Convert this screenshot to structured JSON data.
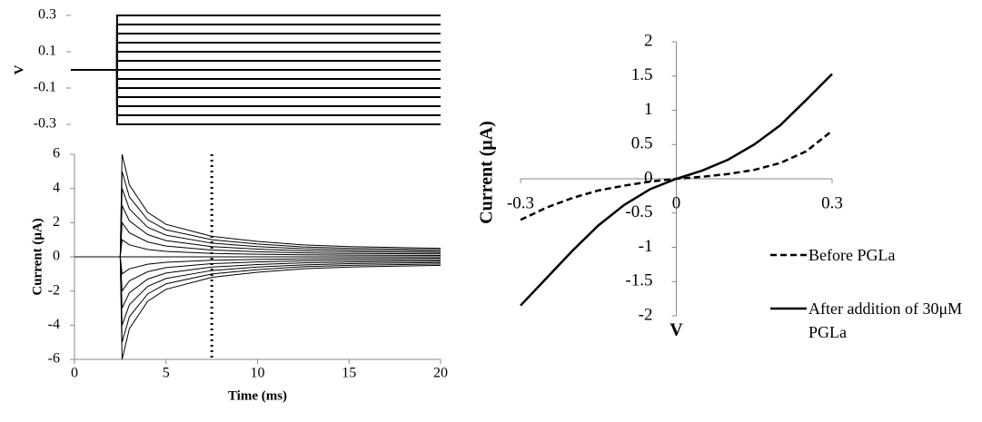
{
  "chart_data": [
    {
      "type": "line",
      "ylabel": "V",
      "x": [
        0,
        2.5,
        2.5,
        20
      ],
      "xlim": [
        0,
        20
      ],
      "ylim": [
        -0.3,
        0.3
      ],
      "yticks": [
        -0.3,
        -0.1,
        0.1,
        0.3
      ],
      "series": [
        {
          "color": "#000000",
          "values": [
            0,
            0,
            0.3,
            0.3
          ]
        },
        {
          "color": "#000000",
          "values": [
            0,
            0,
            0.25,
            0.25
          ]
        },
        {
          "color": "#000000",
          "values": [
            0,
            0,
            0.2,
            0.2
          ]
        },
        {
          "color": "#000000",
          "values": [
            0,
            0,
            0.15,
            0.15
          ]
        },
        {
          "color": "#000000",
          "values": [
            0,
            0,
            0.1,
            0.1
          ]
        },
        {
          "color": "#000000",
          "values": [
            0,
            0,
            0.05,
            0.05
          ]
        },
        {
          "color": "#000000",
          "values": [
            0,
            0,
            0,
            0
          ]
        },
        {
          "color": "#000000",
          "values": [
            0,
            0,
            -0.05,
            -0.05
          ]
        },
        {
          "color": "#000000",
          "values": [
            0,
            0,
            -0.1,
            -0.1
          ]
        },
        {
          "color": "#000000",
          "values": [
            0,
            0,
            -0.15,
            -0.15
          ]
        },
        {
          "color": "#000000",
          "values": [
            0,
            0,
            -0.2,
            -0.2
          ]
        },
        {
          "color": "#000000",
          "values": [
            0,
            0,
            -0.25,
            -0.25
          ]
        },
        {
          "color": "#000000",
          "values": [
            0,
            0,
            -0.3,
            -0.3
          ]
        }
      ]
    },
    {
      "type": "line",
      "xlabel": "Time (ms)",
      "ylabel": "Current (μA)",
      "x": [
        0,
        2.5,
        2.6,
        3,
        4,
        5,
        7.5,
        10,
        12.5,
        15,
        20
      ],
      "xlim": [
        0,
        20
      ],
      "xticks": [
        0,
        5,
        10,
        15,
        20
      ],
      "ylim": [
        -6,
        6
      ],
      "yticks": [
        -6,
        -4,
        -2,
        0,
        2,
        4,
        6
      ],
      "vline": 7.5,
      "series": [
        {
          "color": "#000000",
          "values": [
            0,
            0,
            6,
            4.2,
            2.6,
            1.9,
            1.2,
            0.9,
            0.7,
            0.6,
            0.5
          ]
        },
        {
          "color": "#000000",
          "values": [
            0,
            0,
            5,
            3.5,
            2.17,
            1.58,
            1,
            0.75,
            0.58,
            0.5,
            0.42
          ]
        },
        {
          "color": "#000000",
          "values": [
            0,
            0,
            4,
            2.8,
            1.73,
            1.27,
            0.8,
            0.6,
            0.47,
            0.4,
            0.33
          ]
        },
        {
          "color": "#000000",
          "values": [
            0,
            0,
            3,
            2.1,
            1.3,
            0.95,
            0.6,
            0.45,
            0.35,
            0.3,
            0.25
          ]
        },
        {
          "color": "#000000",
          "values": [
            0,
            0,
            2,
            1.4,
            0.87,
            0.63,
            0.4,
            0.3,
            0.23,
            0.2,
            0.17
          ]
        },
        {
          "color": "#000000",
          "values": [
            0,
            0,
            1,
            0.7,
            0.43,
            0.32,
            0.2,
            0.15,
            0.12,
            0.1,
            0.08
          ]
        },
        {
          "color": "#000000",
          "values": [
            0,
            0,
            0,
            0,
            0,
            0,
            0,
            0,
            0,
            0,
            0
          ]
        },
        {
          "color": "#000000",
          "values": [
            0,
            0,
            -1,
            -0.7,
            -0.43,
            -0.32,
            -0.2,
            -0.15,
            -0.12,
            -0.1,
            -0.08
          ]
        },
        {
          "color": "#000000",
          "values": [
            0,
            0,
            -2,
            -1.4,
            -0.87,
            -0.63,
            -0.4,
            -0.3,
            -0.23,
            -0.2,
            -0.17
          ]
        },
        {
          "color": "#000000",
          "values": [
            0,
            0,
            -3,
            -2.1,
            -1.3,
            -0.95,
            -0.6,
            -0.45,
            -0.35,
            -0.3,
            -0.25
          ]
        },
        {
          "color": "#000000",
          "values": [
            0,
            0,
            -4,
            -2.8,
            -1.73,
            -1.27,
            -0.8,
            -0.6,
            -0.47,
            -0.4,
            -0.33
          ]
        },
        {
          "color": "#000000",
          "values": [
            0,
            0,
            -5,
            -3.5,
            -2.17,
            -1.58,
            -1,
            -0.75,
            -0.58,
            -0.5,
            -0.42
          ]
        },
        {
          "color": "#000000",
          "values": [
            0,
            0,
            -6,
            -4.2,
            -2.6,
            -1.9,
            -1.2,
            -0.9,
            -0.7,
            -0.6,
            -0.5
          ]
        }
      ]
    },
    {
      "type": "line",
      "xlabel": "V",
      "ylabel": "Current (μA)",
      "axes_cross_at_zero": true,
      "legend": "right",
      "x": [
        -0.3,
        -0.25,
        -0.2,
        -0.15,
        -0.1,
        -0.05,
        0,
        0.05,
        0.1,
        0.15,
        0.2,
        0.25,
        0.3
      ],
      "xlim": [
        -0.3,
        0.3
      ],
      "xticks": [
        -0.3,
        0,
        0.3
      ],
      "ylim": [
        -2,
        2
      ],
      "yticks": [
        -2,
        -1.5,
        -1,
        -0.5,
        0,
        0.5,
        1,
        1.5,
        2
      ],
      "series": [
        {
          "name": "Before PGLa",
          "color": "#000000",
          "linestyle": "dashed",
          "values": [
            -0.6,
            -0.42,
            -0.28,
            -0.17,
            -0.1,
            -0.04,
            0,
            0.03,
            0.07,
            0.13,
            0.23,
            0.4,
            0.7
          ]
        },
        {
          "name": "After addition of 30μM PGLa",
          "color": "#000000",
          "linestyle": "solid",
          "values": [
            -1.85,
            -1.45,
            -1.05,
            -0.68,
            -0.38,
            -0.15,
            0,
            0.12,
            0.28,
            0.5,
            0.78,
            1.15,
            1.53
          ]
        }
      ]
    }
  ]
}
